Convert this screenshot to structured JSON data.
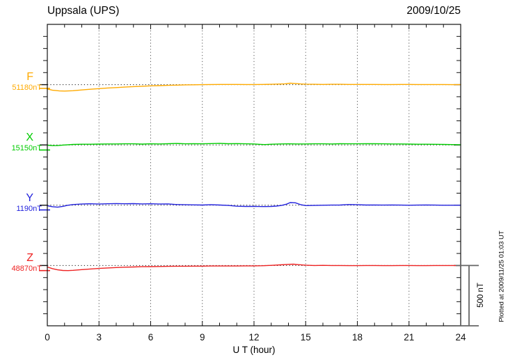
{
  "header": {
    "title": "Uppsala (UPS)",
    "date": "2009/10/25"
  },
  "chart_data": {
    "type": "line",
    "title": "Uppsala (UPS)",
    "date": "2009/10/25",
    "xlabel": "U T (hour)",
    "x_ticks": [
      0,
      3,
      6,
      9,
      12,
      15,
      18,
      21,
      24
    ],
    "x_range": [
      0,
      24
    ],
    "y_minor_tick_nT": 100,
    "y_major_tick_nT": 500,
    "grid": "vertical dotted gridlines every 3 hours; dotted horizontal baseline per component; frame with hourly ticks",
    "legend_position": "left margin, one colored label per trace",
    "scale_bar": {
      "label": "500 nT",
      "nT": 500
    },
    "plotted_at": "Plotted at 2009/11/25 01:03 UT",
    "series": [
      {
        "name": "F",
        "baseline_label": "51180nT",
        "baseline_nT": 51180,
        "color": "#FFAA00",
        "axis_mark_nT": -31,
        "points": [
          [
            0,
            -36
          ],
          [
            0.3,
            -46
          ],
          [
            0.7,
            -52
          ],
          [
            1,
            -53
          ],
          [
            1.5,
            -50
          ],
          [
            2,
            -44
          ],
          [
            2.5,
            -38
          ],
          [
            3,
            -33
          ],
          [
            3.5,
            -28
          ],
          [
            4,
            -24
          ],
          [
            4.5,
            -20
          ],
          [
            5,
            -16
          ],
          [
            5.5,
            -13
          ],
          [
            6,
            -10
          ],
          [
            6.5,
            -8
          ],
          [
            7,
            -6
          ],
          [
            7.5,
            -4
          ],
          [
            8,
            -2
          ],
          [
            8.5,
            -1
          ],
          [
            9,
            0
          ],
          [
            9.5,
            1
          ],
          [
            10,
            2
          ],
          [
            10.5,
            2
          ],
          [
            11,
            2
          ],
          [
            11.5,
            1
          ],
          [
            12,
            1
          ],
          [
            12.5,
            2
          ],
          [
            13,
            3
          ],
          [
            13.5,
            5
          ],
          [
            13.8,
            7
          ],
          [
            14.1,
            12
          ],
          [
            14.4,
            10
          ],
          [
            14.7,
            6
          ],
          [
            15,
            4
          ],
          [
            15.5,
            3
          ],
          [
            16,
            2
          ],
          [
            16.5,
            3
          ],
          [
            17,
            3
          ],
          [
            17.5,
            2
          ],
          [
            18,
            2
          ],
          [
            18.5,
            2
          ],
          [
            19,
            2
          ],
          [
            19.5,
            1
          ],
          [
            20,
            1
          ],
          [
            20.5,
            2
          ],
          [
            21,
            2
          ],
          [
            21.5,
            1
          ],
          [
            22,
            1
          ],
          [
            22.5,
            1
          ],
          [
            23,
            1
          ],
          [
            23.5,
            0
          ],
          [
            24,
            0
          ]
        ]
      },
      {
        "name": "X",
        "baseline_label": "15150nT",
        "baseline_nT": 15150,
        "color": "#00CC00",
        "axis_mark_nT": -42,
        "points": [
          [
            0,
            -2
          ],
          [
            0.3,
            -6
          ],
          [
            0.6,
            -5
          ],
          [
            0.9,
            -1
          ],
          [
            1.2,
            2
          ],
          [
            1.5,
            4
          ],
          [
            2,
            6
          ],
          [
            2.5,
            6
          ],
          [
            3,
            7
          ],
          [
            3.5,
            8
          ],
          [
            4,
            8
          ],
          [
            4.5,
            9
          ],
          [
            5,
            9
          ],
          [
            5.5,
            7
          ],
          [
            6,
            9
          ],
          [
            6.5,
            8
          ],
          [
            7,
            10
          ],
          [
            7.5,
            12
          ],
          [
            8,
            9
          ],
          [
            8.5,
            10
          ],
          [
            9,
            9
          ],
          [
            9.5,
            11
          ],
          [
            10,
            13
          ],
          [
            10.5,
            10
          ],
          [
            11,
            11
          ],
          [
            11.5,
            9
          ],
          [
            12,
            8
          ],
          [
            12.3,
            5
          ],
          [
            12.6,
            3
          ],
          [
            13,
            6
          ],
          [
            13.5,
            8
          ],
          [
            14,
            9
          ],
          [
            14.5,
            8
          ],
          [
            15,
            8
          ],
          [
            15.5,
            9
          ],
          [
            16,
            9
          ],
          [
            16.5,
            8
          ],
          [
            17,
            10
          ],
          [
            17.5,
            9
          ],
          [
            18,
            9
          ],
          [
            18.5,
            10
          ],
          [
            19,
            10
          ],
          [
            19.5,
            9
          ],
          [
            20,
            8
          ],
          [
            20.5,
            8
          ],
          [
            21,
            7
          ],
          [
            21.5,
            6
          ],
          [
            22,
            6
          ],
          [
            22.5,
            5
          ],
          [
            23,
            4
          ],
          [
            23.5,
            3
          ],
          [
            24,
            2
          ]
        ]
      },
      {
        "name": "Y",
        "baseline_label": "1190nT",
        "baseline_nT": 1190,
        "color": "#2222DD",
        "axis_mark_nT": -39,
        "points": [
          [
            0,
            -4
          ],
          [
            0.3,
            -12
          ],
          [
            0.6,
            -16
          ],
          [
            0.9,
            -9
          ],
          [
            1.2,
            0
          ],
          [
            1.5,
            6
          ],
          [
            2,
            10
          ],
          [
            2.5,
            12
          ],
          [
            3,
            10
          ],
          [
            3.5,
            12
          ],
          [
            4,
            14
          ],
          [
            4.5,
            12
          ],
          [
            5,
            13
          ],
          [
            5.5,
            11
          ],
          [
            6,
            12
          ],
          [
            6.5,
            10
          ],
          [
            7,
            11
          ],
          [
            7.5,
            6
          ],
          [
            8,
            4
          ],
          [
            8.5,
            3
          ],
          [
            9,
            2
          ],
          [
            9.5,
            4
          ],
          [
            10,
            2
          ],
          [
            10.5,
            -2
          ],
          [
            11,
            -8
          ],
          [
            11.5,
            -10
          ],
          [
            12,
            -9
          ],
          [
            12.5,
            -11
          ],
          [
            13,
            -10
          ],
          [
            13.3,
            -7
          ],
          [
            13.6,
            -2
          ],
          [
            13.9,
            9
          ],
          [
            14.1,
            22
          ],
          [
            14.4,
            20
          ],
          [
            14.7,
            5
          ],
          [
            15,
            -3
          ],
          [
            15.5,
            -2
          ],
          [
            16,
            0
          ],
          [
            16.5,
            1
          ],
          [
            17,
            2
          ],
          [
            17.5,
            6
          ],
          [
            18,
            4
          ],
          [
            18.5,
            2
          ],
          [
            19,
            2
          ],
          [
            19.5,
            1
          ],
          [
            20,
            2
          ],
          [
            20.5,
            1
          ],
          [
            21,
            0
          ],
          [
            21.5,
            1
          ],
          [
            22,
            2
          ],
          [
            22.5,
            1
          ],
          [
            23,
            0
          ],
          [
            23.5,
            0
          ],
          [
            24,
            0
          ]
        ]
      },
      {
        "name": "Z",
        "baseline_label": "48870nT",
        "baseline_nT": 48870,
        "color": "#EE2222",
        "axis_mark_nT": -42,
        "points": [
          [
            0,
            -12
          ],
          [
            0.3,
            -26
          ],
          [
            0.6,
            -36
          ],
          [
            0.9,
            -41
          ],
          [
            1.2,
            -42
          ],
          [
            1.5,
            -40
          ],
          [
            2,
            -34
          ],
          [
            2.5,
            -29
          ],
          [
            3,
            -24
          ],
          [
            3.5,
            -20
          ],
          [
            4,
            -17
          ],
          [
            4.5,
            -14
          ],
          [
            5,
            -12
          ],
          [
            5.5,
            -10
          ],
          [
            6,
            -9
          ],
          [
            6.5,
            -8
          ],
          [
            7,
            -7
          ],
          [
            7.5,
            -6
          ],
          [
            8,
            -6
          ],
          [
            8.5,
            -5
          ],
          [
            9,
            -5
          ],
          [
            9.5,
            -4
          ],
          [
            10,
            -4
          ],
          [
            10.5,
            -4
          ],
          [
            11,
            -4
          ],
          [
            11.5,
            -3
          ],
          [
            12,
            -3
          ],
          [
            12.5,
            -2
          ],
          [
            13,
            1
          ],
          [
            13.5,
            5
          ],
          [
            14,
            10
          ],
          [
            14.3,
            11
          ],
          [
            14.6,
            7
          ],
          [
            15,
            3
          ],
          [
            15.5,
            0
          ],
          [
            16,
            1
          ],
          [
            16.5,
            0
          ],
          [
            17,
            0
          ],
          [
            17.5,
            -1
          ],
          [
            18,
            -1
          ],
          [
            18.5,
            0
          ],
          [
            19,
            0
          ],
          [
            19.5,
            -1
          ],
          [
            20,
            -1
          ],
          [
            20.5,
            0
          ],
          [
            21,
            0
          ],
          [
            21.5,
            -1
          ],
          [
            22,
            -1
          ],
          [
            22.5,
            0
          ],
          [
            23,
            0
          ],
          [
            23.5,
            0
          ],
          [
            24,
            0
          ]
        ]
      }
    ]
  }
}
